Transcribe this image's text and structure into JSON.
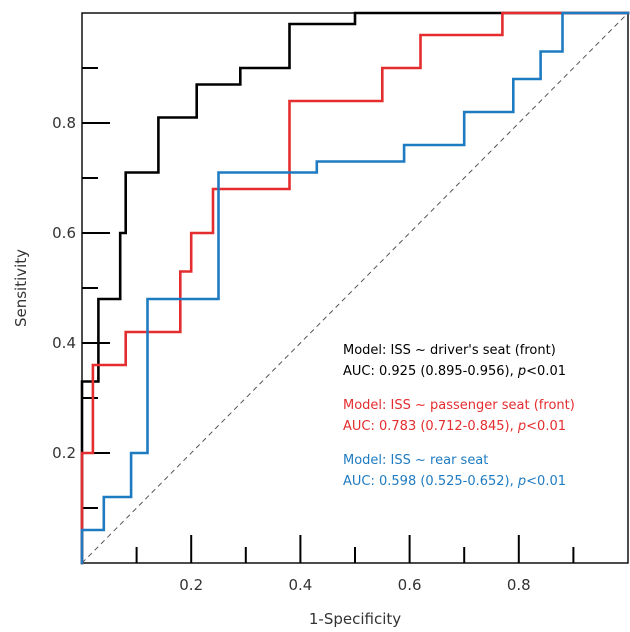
{
  "chart_data": {
    "type": "line",
    "xlabel": "1-Specificity",
    "ylabel": "Sensitivity",
    "xlim": [
      0,
      1
    ],
    "ylim": [
      0,
      1
    ],
    "x_ticks": [
      0.2,
      0.4,
      0.6,
      0.8
    ],
    "y_ticks": [
      0.2,
      0.4,
      0.6,
      0.8
    ],
    "grid": false,
    "reference_line": "diagonal dashed",
    "legend_placement": "bottom-right",
    "series": [
      {
        "color": "#000000",
        "legend_lines": [
          {
            "text": "Model: ISS ~ driver's seat (front)"
          },
          {
            "pre": "AUC: 0.925 (0.895-0.956), ",
            "italic": "p",
            "post": "<0.01"
          }
        ],
        "x": [
          0,
          0,
          0.03,
          0.03,
          0.07,
          0.07,
          0.08,
          0.08,
          0.09,
          0.09,
          0.14,
          0.14,
          0.21,
          0.21,
          0.29,
          0.29,
          0.38,
          0.38,
          0.45,
          0.45,
          0.5,
          0.5,
          1.0
        ],
        "y": [
          0,
          0.33,
          0.33,
          0.48,
          0.48,
          0.6,
          0.6,
          0.71,
          0.71,
          0.71,
          0.71,
          0.81,
          0.81,
          0.87,
          0.87,
          0.9,
          0.9,
          0.98,
          0.98,
          0.98,
          0.98,
          1.0,
          1.0
        ]
      },
      {
        "color": "#e42d2f",
        "legend_lines": [
          {
            "text": "Model: ISS ~ passenger seat (front)"
          },
          {
            "pre": "AUC: 0.783 (0.712-0.845), ",
            "italic": "p",
            "post": "<0.01"
          }
        ],
        "x": [
          0,
          0,
          0.02,
          0.02,
          0.08,
          0.08,
          0.18,
          0.18,
          0.2,
          0.2,
          0.24,
          0.24,
          0.38,
          0.38,
          0.55,
          0.55,
          0.62,
          0.62,
          0.77,
          0.77,
          1.0
        ],
        "y": [
          0,
          0.2,
          0.2,
          0.36,
          0.36,
          0.42,
          0.42,
          0.53,
          0.53,
          0.6,
          0.6,
          0.68,
          0.68,
          0.84,
          0.84,
          0.9,
          0.9,
          0.96,
          0.96,
          1.0,
          1.0
        ]
      },
      {
        "color": "#1f7bc1",
        "legend_lines": [
          {
            "text": "Model: ISS ~ rear seat"
          },
          {
            "pre": "AUC: 0.598 (0.525-0.652), ",
            "italic": "p",
            "post": "<0.01"
          }
        ],
        "x": [
          0,
          0,
          0.04,
          0.04,
          0.09,
          0.09,
          0.12,
          0.12,
          0.25,
          0.25,
          0.43,
          0.43,
          0.59,
          0.59,
          0.7,
          0.7,
          0.79,
          0.79,
          0.84,
          0.84,
          0.88,
          0.88,
          1.0
        ],
        "y": [
          0,
          0.06,
          0.06,
          0.12,
          0.12,
          0.2,
          0.2,
          0.48,
          0.48,
          0.71,
          0.71,
          0.73,
          0.73,
          0.76,
          0.76,
          0.82,
          0.82,
          0.88,
          0.88,
          0.93,
          0.93,
          1.0,
          1.0
        ]
      }
    ]
  }
}
